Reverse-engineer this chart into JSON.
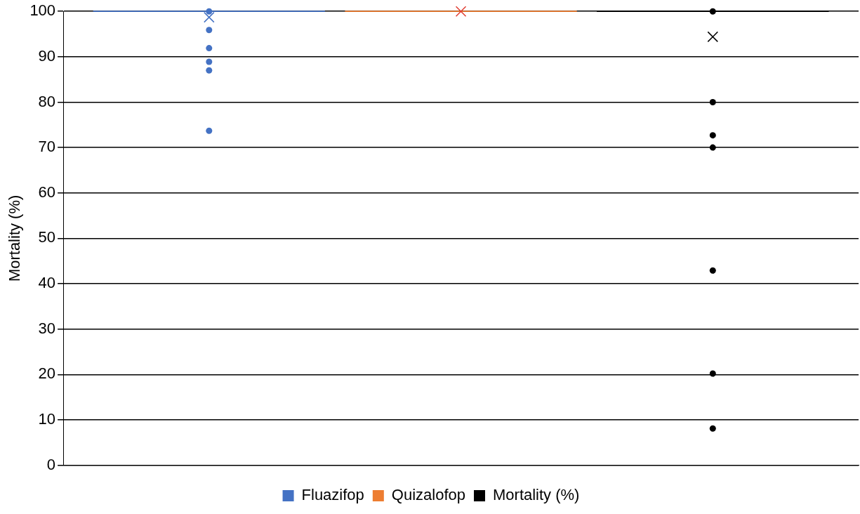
{
  "chart_data": {
    "type": "box",
    "ylabel": "Mortality (%)",
    "categories": [
      null
    ],
    "ylim": [
      0,
      100
    ],
    "yticks": [
      0,
      10,
      20,
      30,
      40,
      50,
      60,
      70,
      80,
      90,
      100
    ],
    "grid": "y",
    "legend": "bottom",
    "series": [
      {
        "name": "Fluazifop",
        "color": "#4472c4",
        "boxes": [
          {
            "low": 100,
            "q1": 100,
            "median": 100,
            "q3": 100,
            "high": 100,
            "mean": 98.7,
            "outliers": [
              100,
              95.9,
              91.9,
              88.9,
              87,
              73.7
            ]
          }
        ]
      },
      {
        "name": "Quizalofop",
        "color": "#ed7d31",
        "boxes": [
          {
            "low": 100,
            "q1": 100,
            "median": 100,
            "q3": 100,
            "high": 100,
            "mean": 100
          }
        ]
      },
      {
        "name": "Mortality (%)",
        "color": "#000000",
        "boxes": [
          {
            "low": 100,
            "q1": 100,
            "median": 100,
            "q3": 100,
            "high": 100,
            "mean": 94.4,
            "outliers": [
              100,
              80,
              72.7,
              70,
              42.9,
              20.2,
              8.1
            ]
          }
        ]
      }
    ]
  }
}
